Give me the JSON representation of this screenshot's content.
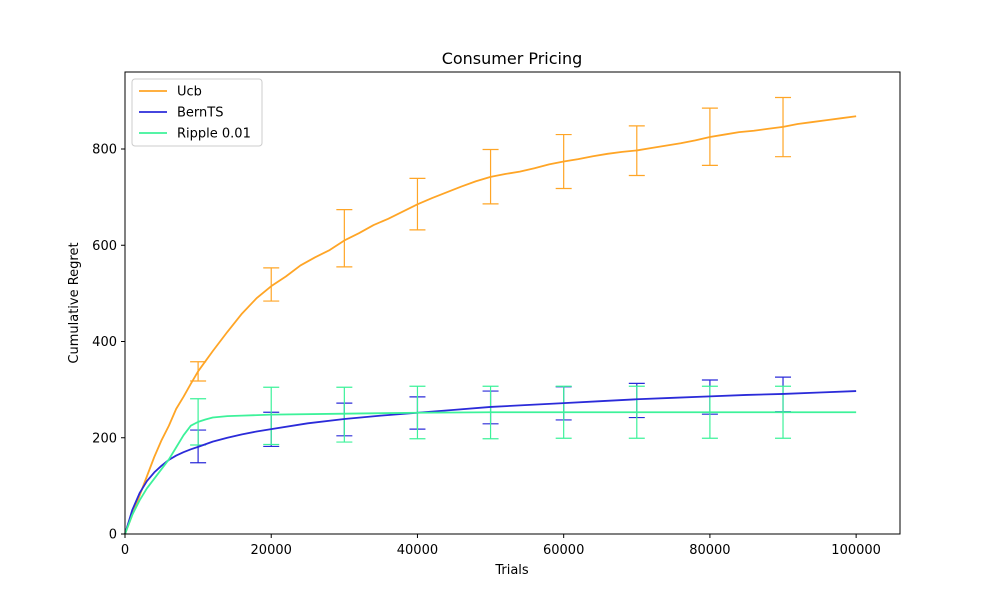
{
  "chart_data": {
    "type": "line",
    "title": "Consumer Pricing",
    "xlabel": "Trials",
    "ylabel": "Cumulative Regret",
    "xlim": [
      0,
      106000
    ],
    "ylim": [
      0,
      960
    ],
    "x_ticks": [
      0,
      20000,
      40000,
      60000,
      80000,
      100000
    ],
    "y_ticks": [
      0,
      200,
      400,
      600,
      800
    ],
    "grid": false,
    "legend_position": "top-left",
    "series": [
      {
        "name": "Ucb",
        "color": "#FFA526",
        "x": [
          0,
          1000,
          2000,
          3000,
          4000,
          5000,
          6000,
          7000,
          8000,
          9000,
          10000,
          12000,
          14000,
          16000,
          18000,
          20000,
          22000,
          24000,
          26000,
          28000,
          30000,
          32000,
          34000,
          36000,
          38000,
          40000,
          42000,
          44000,
          46000,
          48000,
          50000,
          52000,
          54000,
          56000,
          58000,
          60000,
          62000,
          64000,
          66000,
          68000,
          70000,
          72000,
          74000,
          76000,
          78000,
          80000,
          82000,
          84000,
          86000,
          88000,
          90000,
          92000,
          94000,
          96000,
          98000,
          100000
        ],
        "y": [
          0,
          40,
          80,
          120,
          160,
          195,
          225,
          260,
          285,
          312,
          338,
          380,
          420,
          458,
          490,
          515,
          535,
          558,
          575,
          590,
          610,
          625,
          642,
          655,
          670,
          685,
          698,
          710,
          722,
          733,
          742,
          748,
          753,
          760,
          768,
          774,
          779,
          785,
          790,
          794,
          797,
          802,
          807,
          812,
          818,
          825,
          830,
          835,
          838,
          842,
          846,
          852,
          856,
          860,
          864,
          868
        ],
        "error_bars": {
          "x": [
            10000,
            20000,
            30000,
            40000,
            50000,
            60000,
            70000,
            80000,
            90000
          ],
          "lower": [
            318,
            484,
            555,
            632,
            686,
            718,
            745,
            766,
            784
          ],
          "upper": [
            358,
            553,
            674,
            739,
            799,
            830,
            848,
            885,
            907
          ]
        }
      },
      {
        "name": "BernTS",
        "color": "#2B2BD9",
        "x": [
          0,
          1000,
          2000,
          3000,
          4000,
          5000,
          6000,
          7000,
          8000,
          9000,
          10000,
          12000,
          14000,
          16000,
          18000,
          20000,
          25000,
          30000,
          35000,
          40000,
          45000,
          50000,
          55000,
          60000,
          65000,
          70000,
          75000,
          80000,
          85000,
          90000,
          95000,
          100000
        ],
        "y": [
          0,
          50,
          85,
          110,
          128,
          142,
          154,
          163,
          170,
          176,
          181,
          192,
          200,
          207,
          213,
          218,
          230,
          239,
          246,
          252,
          258,
          264,
          268,
          272,
          276,
          280,
          283,
          286,
          289,
          291,
          294,
          297
        ],
        "error_bars": {
          "x": [
            10000,
            20000,
            30000,
            40000,
            50000,
            60000,
            70000,
            80000,
            90000
          ],
          "lower": [
            148,
            182,
            204,
            218,
            229,
            237,
            242,
            249,
            254
          ],
          "upper": [
            216,
            253,
            272,
            285,
            297,
            306,
            313,
            320,
            326
          ]
        }
      },
      {
        "name": "Ripple 0.01",
        "color": "#3DF29A",
        "x": [
          0,
          1000,
          2000,
          3000,
          4000,
          5000,
          6000,
          7000,
          8000,
          9000,
          10000,
          11000,
          12000,
          14000,
          16000,
          20000,
          30000,
          40000,
          50000,
          60000,
          70000,
          80000,
          90000,
          100000
        ],
        "y": [
          0,
          40,
          70,
          95,
          115,
          135,
          155,
          180,
          205,
          225,
          233,
          238,
          242,
          245,
          246,
          248,
          250,
          252,
          253,
          253,
          253,
          253,
          253,
          253
        ],
        "error_bars": {
          "x": [
            10000,
            20000,
            30000,
            40000,
            50000,
            60000,
            70000,
            80000,
            90000
          ],
          "lower": [
            185,
            186,
            191,
            198,
            198,
            199,
            199,
            199,
            199
          ],
          "upper": [
            281,
            305,
            305,
            307,
            307,
            307,
            307,
            307,
            307
          ]
        }
      }
    ]
  }
}
